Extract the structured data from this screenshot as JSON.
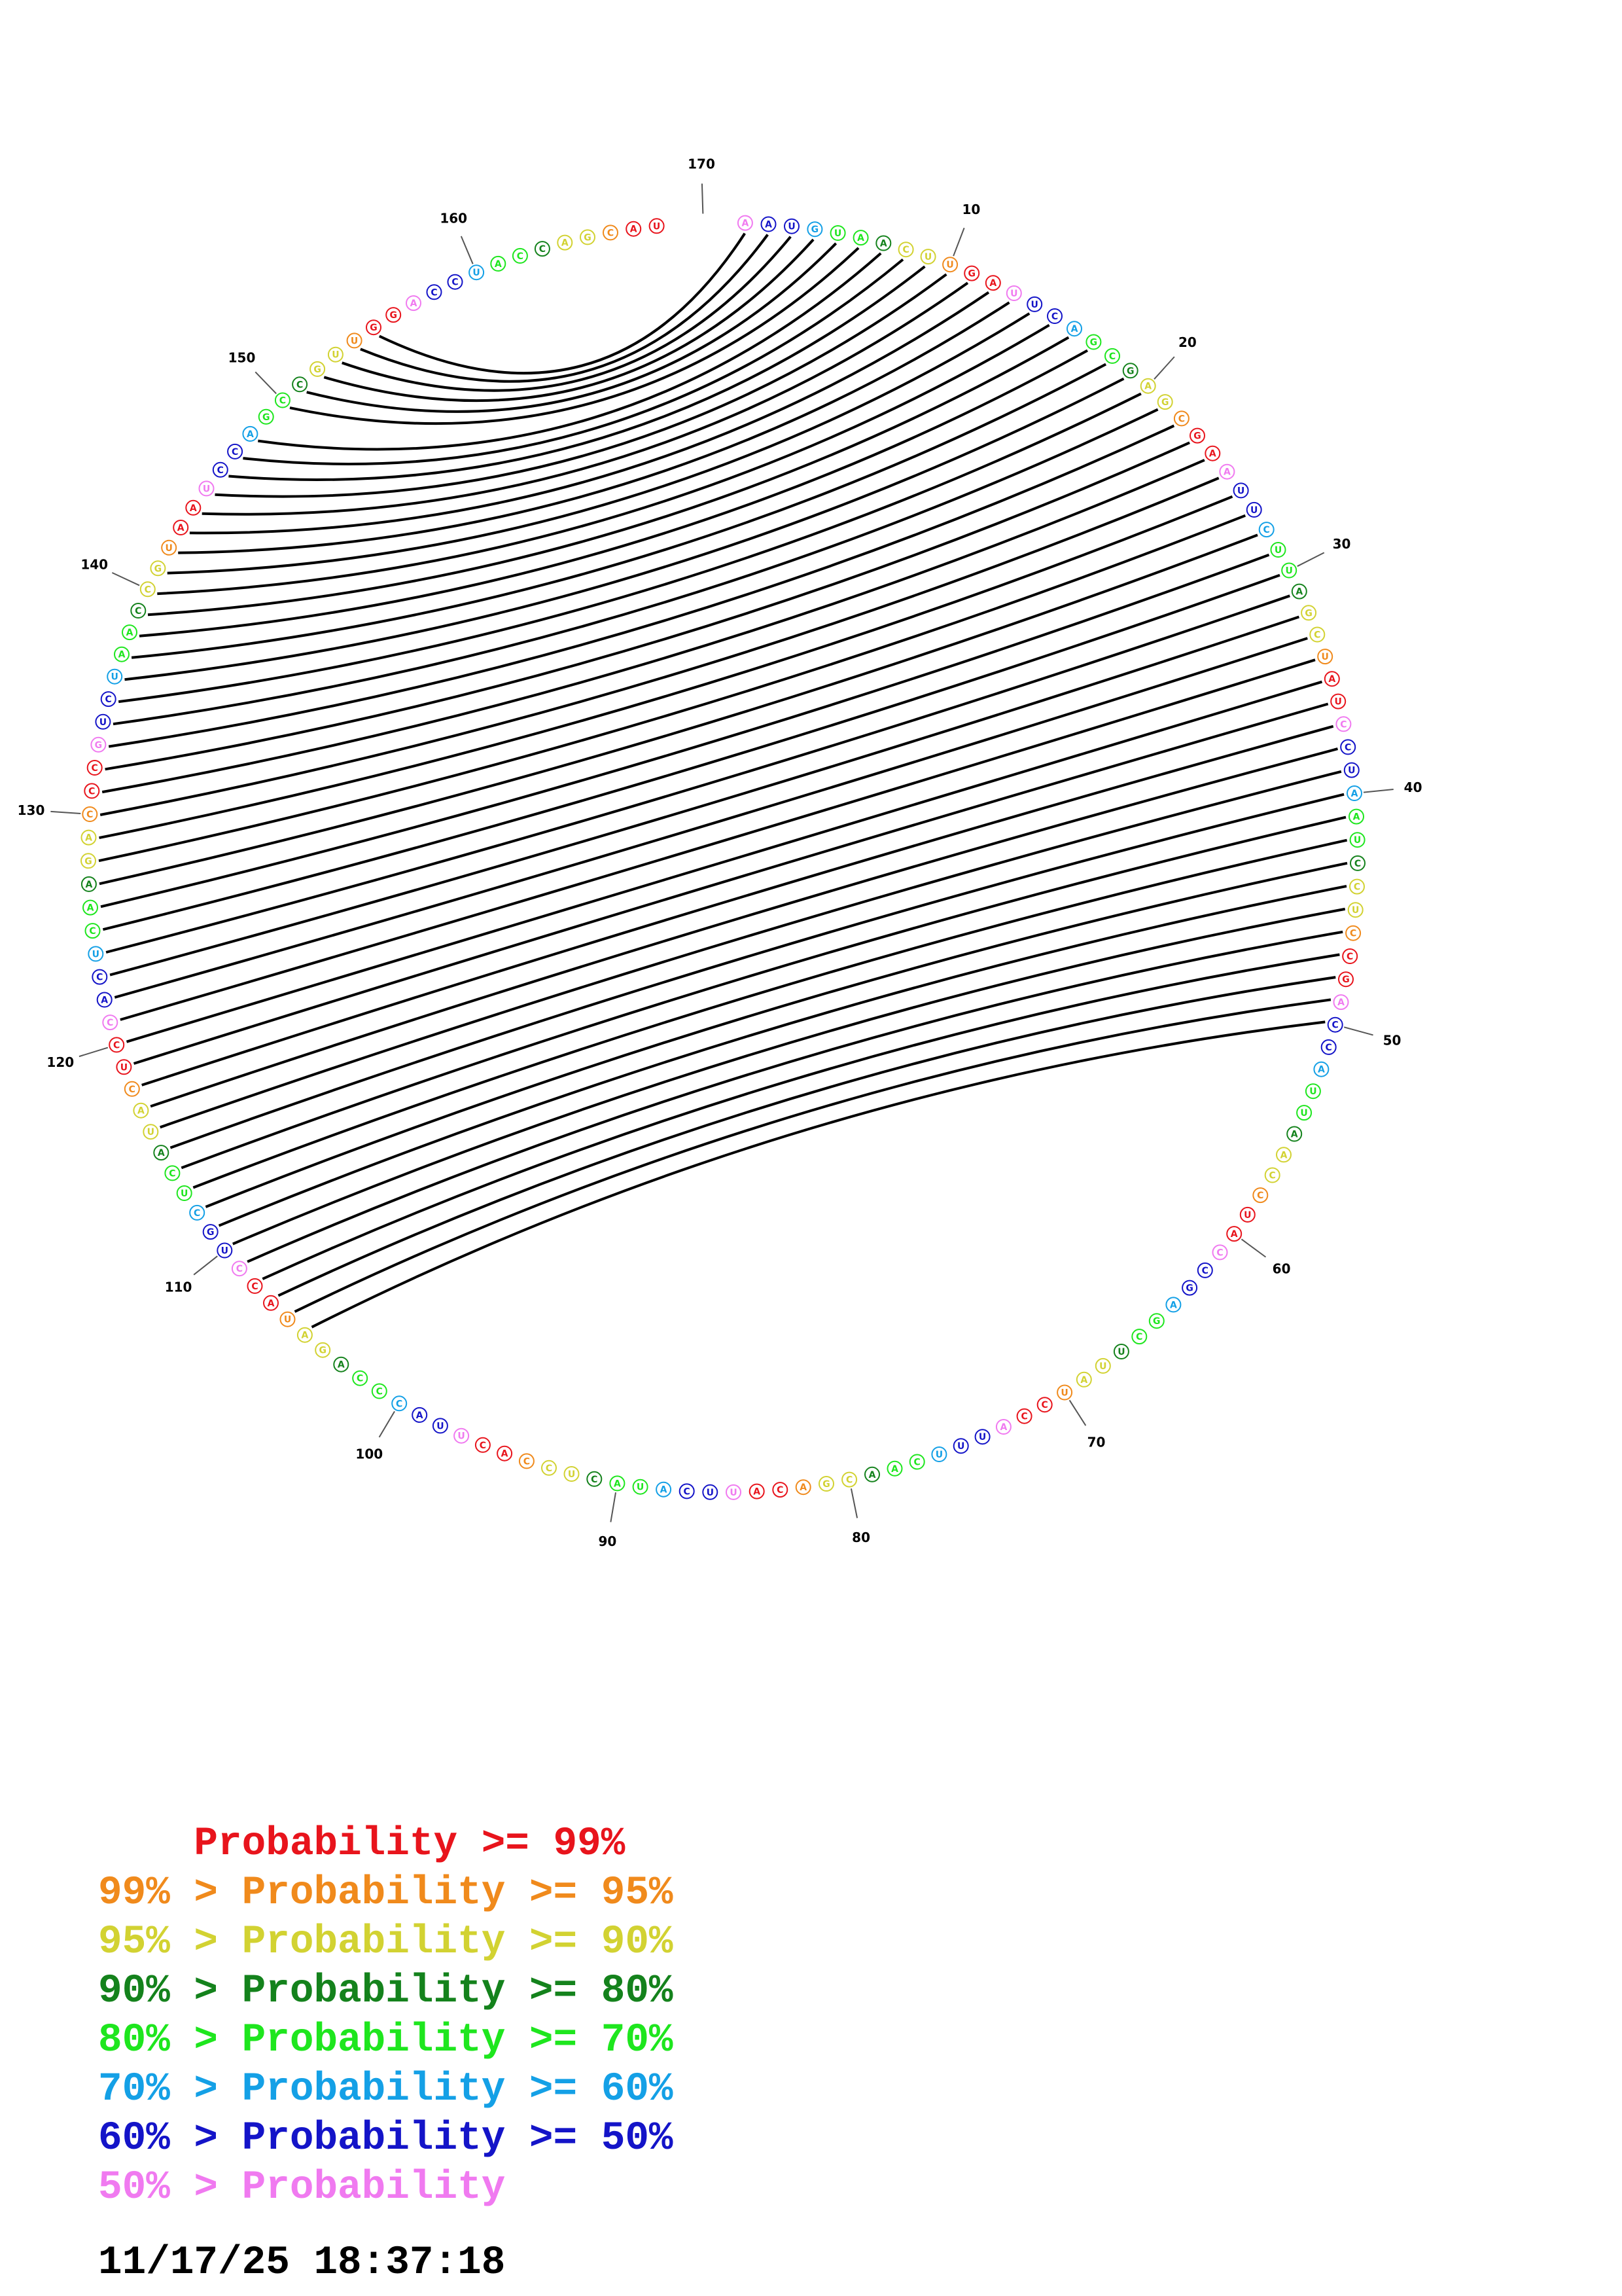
{
  "sequence": "AAUGUAACUUGAUUCAGCGAGCGAAUUCUUAGCUAUCCUAAUCCUCCGACCAUUAACCUACCGAGCUUAUCCAUUUCAACGACAUUCAUACUCCACUUACCCAGAUACCUGCUCAUACUCCACUCAAGACCCGUCUAACCGUAAUCCAGCCGUUGGACCUACCAGCAU",
  "pairs": [
    [
      1,
      155
    ],
    [
      2,
      154
    ],
    [
      3,
      153
    ],
    [
      4,
      152
    ],
    [
      5,
      151
    ],
    [
      6,
      150
    ],
    [
      7,
      148
    ],
    [
      8,
      147
    ],
    [
      9,
      146
    ],
    [
      10,
      145
    ],
    [
      11,
      144
    ],
    [
      12,
      143
    ],
    [
      13,
      142
    ],
    [
      14,
      141
    ],
    [
      15,
      140
    ],
    [
      16,
      139
    ],
    [
      17,
      138
    ],
    [
      18,
      137
    ],
    [
      19,
      136
    ],
    [
      20,
      135
    ],
    [
      21,
      134
    ],
    [
      22,
      133
    ],
    [
      23,
      132
    ],
    [
      24,
      131
    ],
    [
      25,
      130
    ],
    [
      26,
      129
    ],
    [
      27,
      128
    ],
    [
      28,
      127
    ],
    [
      29,
      126
    ],
    [
      30,
      125
    ],
    [
      31,
      124
    ],
    [
      32,
      123
    ],
    [
      33,
      122
    ],
    [
      34,
      121
    ],
    [
      35,
      120
    ],
    [
      36,
      119
    ],
    [
      37,
      118
    ],
    [
      38,
      117
    ],
    [
      39,
      116
    ],
    [
      40,
      115
    ],
    [
      41,
      114
    ],
    [
      42,
      113
    ],
    [
      43,
      112
    ],
    [
      44,
      111
    ],
    [
      45,
      110
    ],
    [
      46,
      109
    ],
    [
      47,
      108
    ],
    [
      48,
      107
    ],
    [
      49,
      106
    ],
    [
      50,
      105
    ]
  ],
  "position_labels": [
    "10",
    "20",
    "30",
    "40",
    "50",
    "60",
    "70",
    "80",
    "90",
    "100",
    "110",
    "120",
    "130",
    "140",
    "150",
    "160",
    "170"
  ],
  "colors": {
    "p99": "#e8141c",
    "p95": "#f08a1c",
    "p90": "#d2d232",
    "p80": "#14821c",
    "p70": "#1ee61e",
    "p60": "#14a0e6",
    "p50": "#1414c8",
    "plow": "#f07af0",
    "line": "#000000"
  },
  "legend": [
    {
      "text": "    Probability >= 99%",
      "color": "#e8141c"
    },
    {
      "text": "99% > Probability >= 95%",
      "color": "#f08a1c"
    },
    {
      "text": "95% > Probability >= 90%",
      "color": "#d2d232"
    },
    {
      "text": "90% > Probability >= 80%",
      "color": "#14821c"
    },
    {
      "text": "80% > Probability >= 70%",
      "color": "#1ee61e"
    },
    {
      "text": "70% > Probability >= 60%",
      "color": "#14a0e6"
    },
    {
      "text": "60% > Probability >= 50%",
      "color": "#1414c8"
    },
    {
      "text": "50% > Probability",
      "color": "#f07af0"
    }
  ],
  "timestamp": "11/17/25 18:37:18"
}
